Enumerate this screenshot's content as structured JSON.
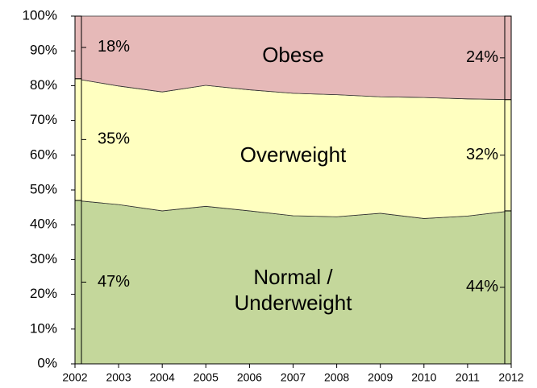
{
  "chart_data": {
    "type": "stacked-area",
    "x": [
      2002,
      2003,
      2004,
      2005,
      2006,
      2007,
      2008,
      2009,
      2010,
      2011,
      2012
    ],
    "xlim": [
      2002,
      2012
    ],
    "xticks": [
      2002,
      2003,
      2004,
      2005,
      2006,
      2007,
      2008,
      2009,
      2010,
      2011,
      2012
    ],
    "ylim": [
      0,
      100
    ],
    "yticks": [
      {
        "value": 0,
        "label": "0%"
      },
      {
        "value": 10,
        "label": "10%"
      },
      {
        "value": 20,
        "label": "20%"
      },
      {
        "value": 30,
        "label": "30%"
      },
      {
        "value": 40,
        "label": "40%"
      },
      {
        "value": 50,
        "label": "50%"
      },
      {
        "value": 60,
        "label": "60%"
      },
      {
        "value": 70,
        "label": "70%"
      },
      {
        "value": 80,
        "label": "80%"
      },
      {
        "value": 90,
        "label": "90%"
      },
      {
        "value": 100,
        "label": "100%"
      }
    ],
    "series": [
      {
        "name": "Normal / Underweight",
        "color": "#c4d79b",
        "values": [
          47,
          45.8,
          44,
          45.3,
          44,
          42.6,
          42.3,
          43.3,
          41.8,
          42.5,
          44
        ],
        "value_labels": [
          "47%",
          null,
          null,
          null,
          null,
          null,
          null,
          null,
          null,
          null,
          "44%"
        ]
      },
      {
        "name": "Overweight",
        "color": "#ffffc0",
        "values": [
          35,
          34.1,
          34.2,
          34.8,
          34.8,
          35.2,
          35.1,
          33.5,
          34.8,
          33.7,
          32
        ],
        "value_labels": [
          "35%",
          null,
          null,
          null,
          null,
          null,
          null,
          null,
          null,
          null,
          "32%"
        ]
      },
      {
        "name": "Obese",
        "color": "#e6b9b8",
        "values": [
          18,
          20.1,
          21.8,
          19.9,
          21.2,
          22.2,
          22.6,
          23.2,
          23.4,
          23.8,
          24
        ],
        "value_labels": [
          "18%",
          null,
          null,
          null,
          null,
          null,
          null,
          null,
          null,
          null,
          "24%"
        ]
      }
    ]
  }
}
